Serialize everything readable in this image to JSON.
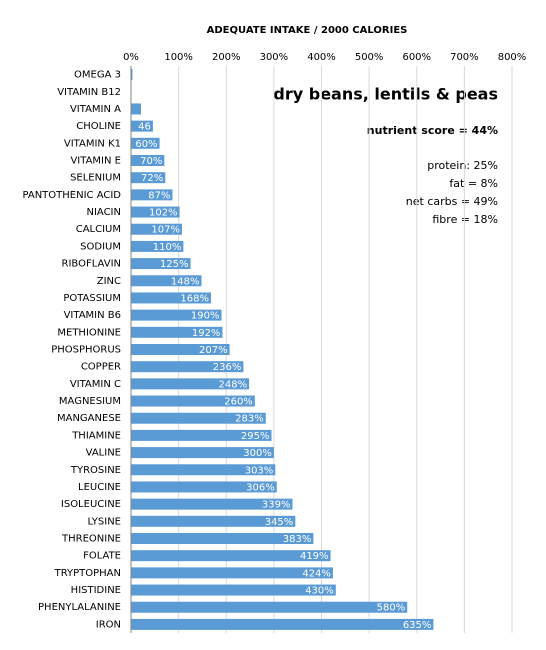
{
  "chart_data": {
    "type": "barh",
    "title": "ADEQUATE INTAKE / 2000 CALORIES",
    "annotations": [
      "dry beans, lentils & peas",
      "nutrient score = 44%",
      "protein: 25%",
      "fat = 8%",
      "net carbs = 49%",
      "fibre = 18%"
    ],
    "categories": [
      "OMEGA 3",
      "VITAMIN B12",
      "VITAMIN A",
      "CHOLINE",
      "VITAMIN K1",
      "VITAMIN E",
      "SELENIUM",
      "PANTOTHENIC ACID",
      "NIACIN",
      "CALCIUM",
      "SODIUM",
      "RIBOFLAVIN",
      "ZINC",
      "POTASSIUM",
      "VITAMIN B6",
      "METHIONINE",
      "PHOSPHORUS",
      "COPPER",
      "VITAMIN C",
      "MAGNESIUM",
      "MANGANESE",
      "THIAMINE",
      "VALINE",
      "TYROSINE",
      "LEUCINE",
      "ISOLEUCINE",
      "LYSINE",
      "THREONINE",
      "FOLATE",
      "TRYPTOPHAN",
      "HISTIDINE",
      "PHENYLALANINE",
      "IRON"
    ],
    "values": [
      3,
      1,
      21,
      46,
      60,
      70,
      72,
      87,
      102,
      107,
      110,
      125,
      148,
      168,
      190,
      192,
      207,
      236,
      248,
      260,
      283,
      295,
      300,
      303,
      306,
      339,
      345,
      383,
      419,
      424,
      430,
      580,
      635
    ],
    "value_labels": [
      null,
      null,
      null,
      "46",
      "60%",
      "70%",
      "72%",
      "87%",
      "102%",
      "107%",
      "110%",
      "125%",
      "148%",
      "168%",
      "190%",
      "192%",
      "207%",
      "236%",
      "248%",
      "260%",
      "283%",
      "295%",
      "300%",
      "303%",
      "306%",
      "339%",
      "345%",
      "383%",
      "419%",
      "424%",
      "430%",
      "580%",
      "635%"
    ],
    "color": "#5b9bd5",
    "xlim": [
      0,
      800
    ],
    "xticks": [
      {
        "value": 0,
        "label": "0%"
      },
      {
        "value": 100,
        "label": "100%"
      },
      {
        "value": 200,
        "label": "200%"
      },
      {
        "value": 300,
        "label": "300%"
      },
      {
        "value": 400,
        "label": "400%"
      },
      {
        "value": 500,
        "label": "500%"
      },
      {
        "value": 600,
        "label": "600%"
      },
      {
        "value": 700,
        "label": "700%"
      },
      {
        "value": 800,
        "label": "800%"
      }
    ],
    "grid": true
  }
}
